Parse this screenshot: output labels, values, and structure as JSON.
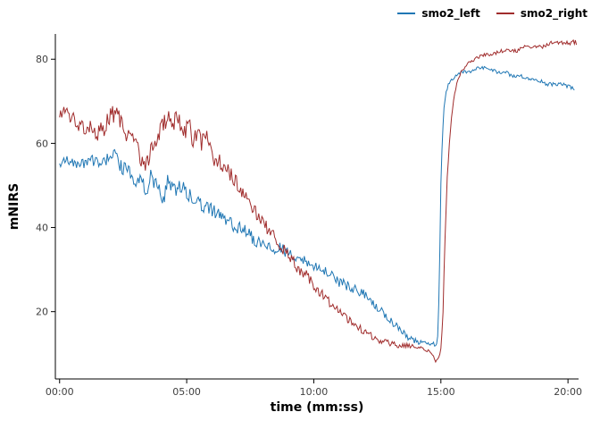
{
  "legend": {
    "items": [
      {
        "label": "smo2_left"
      },
      {
        "label": "smo2_right"
      }
    ]
  },
  "chart_data": {
    "type": "line",
    "title": "",
    "xlabel": "time (mm:ss)",
    "ylabel": "mNIRS",
    "grid": false,
    "legend_position": "top-right",
    "background": "#ffffff",
    "axis_color": "#000000",
    "tick_label_color": "#404040",
    "x_domain": [
      -10,
      1225
    ],
    "y_domain": [
      4,
      86
    ],
    "x_ticks": [
      {
        "t": 0,
        "label": "00:00"
      },
      {
        "t": 300,
        "label": "05:00"
      },
      {
        "t": 600,
        "label": "10:00"
      },
      {
        "t": 900,
        "label": "15:00"
      },
      {
        "t": 1200,
        "label": "20:00"
      }
    ],
    "y_ticks": [
      {
        "v": 20,
        "label": "20"
      },
      {
        "v": 40,
        "label": "40"
      },
      {
        "v": 60,
        "label": "60"
      },
      {
        "v": 80,
        "label": "80"
      }
    ],
    "sample_step": 2.5,
    "series": [
      {
        "name": "smo2_left",
        "color": "#2077b4",
        "points": [
          [
            0,
            55
          ],
          [
            20,
            56
          ],
          [
            40,
            55
          ],
          [
            60,
            55
          ],
          [
            80,
            56
          ],
          [
            100,
            55
          ],
          [
            115,
            57
          ],
          [
            125,
            58
          ],
          [
            140,
            55
          ],
          [
            155,
            54
          ],
          [
            170,
            52
          ],
          [
            180,
            50
          ],
          [
            195,
            52
          ],
          [
            205,
            48
          ],
          [
            215,
            52
          ],
          [
            230,
            50
          ],
          [
            245,
            46
          ],
          [
            255,
            51
          ],
          [
            270,
            49
          ],
          [
            285,
            50
          ],
          [
            300,
            48
          ],
          [
            315,
            47
          ],
          [
            330,
            46
          ],
          [
            345,
            45
          ],
          [
            360,
            44
          ],
          [
            380,
            43
          ],
          [
            400,
            41
          ],
          [
            420,
            40
          ],
          [
            440,
            39
          ],
          [
            460,
            37
          ],
          [
            480,
            36
          ],
          [
            500,
            35
          ],
          [
            520,
            35
          ],
          [
            540,
            34
          ],
          [
            560,
            33
          ],
          [
            580,
            32
          ],
          [
            600,
            31
          ],
          [
            620,
            30
          ],
          [
            640,
            29
          ],
          [
            660,
            27
          ],
          [
            680,
            26
          ],
          [
            700,
            25
          ],
          [
            720,
            24
          ],
          [
            740,
            22
          ],
          [
            760,
            20
          ],
          [
            780,
            18
          ],
          [
            800,
            16
          ],
          [
            820,
            14
          ],
          [
            840,
            13
          ],
          [
            860,
            12.5
          ],
          [
            880,
            12.5
          ],
          [
            888,
            12
          ],
          [
            892,
            13
          ],
          [
            896,
            25
          ],
          [
            900,
            50
          ],
          [
            904,
            63
          ],
          [
            908,
            69
          ],
          [
            912,
            72
          ],
          [
            918,
            74
          ],
          [
            925,
            75
          ],
          [
            935,
            76
          ],
          [
            950,
            77
          ],
          [
            970,
            77
          ],
          [
            990,
            78
          ],
          [
            1010,
            78
          ],
          [
            1030,
            77
          ],
          [
            1050,
            77
          ],
          [
            1070,
            76
          ],
          [
            1090,
            76
          ],
          [
            1110,
            75
          ],
          [
            1130,
            75
          ],
          [
            1150,
            74
          ],
          [
            1170,
            74
          ],
          [
            1190,
            74
          ],
          [
            1215,
            73
          ]
        ],
        "noise": [
          [
            0,
            1.0
          ],
          [
            150,
            1.8
          ],
          [
            330,
            1.8
          ],
          [
            480,
            1.4
          ],
          [
            700,
            1.2
          ],
          [
            860,
            0.6
          ],
          [
            895,
            0.4
          ],
          [
            930,
            0.4
          ],
          [
            1230,
            0.5
          ]
        ]
      },
      {
        "name": "smo2_right",
        "color": "#a02c2c",
        "points": [
          [
            0,
            67
          ],
          [
            15,
            68
          ],
          [
            30,
            66
          ],
          [
            45,
            64
          ],
          [
            60,
            63
          ],
          [
            75,
            65
          ],
          [
            90,
            62
          ],
          [
            105,
            64
          ],
          [
            120,
            66
          ],
          [
            135,
            68
          ],
          [
            150,
            64
          ],
          [
            165,
            61
          ],
          [
            180,
            59
          ],
          [
            195,
            56
          ],
          [
            205,
            55
          ],
          [
            215,
            58
          ],
          [
            225,
            61
          ],
          [
            240,
            64
          ],
          [
            255,
            66
          ],
          [
            265,
            63
          ],
          [
            275,
            66
          ],
          [
            285,
            64
          ],
          [
            295,
            62
          ],
          [
            305,
            64
          ],
          [
            315,
            61
          ],
          [
            325,
            63
          ],
          [
            335,
            60
          ],
          [
            345,
            62
          ],
          [
            355,
            58
          ],
          [
            370,
            56
          ],
          [
            385,
            55
          ],
          [
            400,
            53
          ],
          [
            415,
            51
          ],
          [
            430,
            49
          ],
          [
            445,
            46
          ],
          [
            460,
            44
          ],
          [
            475,
            42
          ],
          [
            490,
            40
          ],
          [
            505,
            38
          ],
          [
            520,
            36
          ],
          [
            535,
            34
          ],
          [
            550,
            32
          ],
          [
            565,
            30
          ],
          [
            580,
            29
          ],
          [
            600,
            26
          ],
          [
            620,
            24
          ],
          [
            640,
            22
          ],
          [
            660,
            20
          ],
          [
            680,
            18
          ],
          [
            700,
            17
          ],
          [
            720,
            15
          ],
          [
            740,
            14
          ],
          [
            760,
            13
          ],
          [
            780,
            12.5
          ],
          [
            800,
            12
          ],
          [
            820,
            12
          ],
          [
            840,
            11.5
          ],
          [
            860,
            11
          ],
          [
            875,
            10.5
          ],
          [
            883,
            9
          ],
          [
            889,
            8
          ],
          [
            895,
            9
          ],
          [
            900,
            11
          ],
          [
            905,
            20
          ],
          [
            910,
            38
          ],
          [
            915,
            52
          ],
          [
            920,
            60
          ],
          [
            925,
            66
          ],
          [
            930,
            70
          ],
          [
            935,
            73
          ],
          [
            940,
            75
          ],
          [
            948,
            77
          ],
          [
            956,
            78
          ],
          [
            965,
            79
          ],
          [
            980,
            80
          ],
          [
            1000,
            81
          ],
          [
            1020,
            81
          ],
          [
            1040,
            82
          ],
          [
            1060,
            82
          ],
          [
            1080,
            82
          ],
          [
            1100,
            83
          ],
          [
            1120,
            83
          ],
          [
            1140,
            83
          ],
          [
            1160,
            84
          ],
          [
            1180,
            84
          ],
          [
            1200,
            84
          ],
          [
            1220,
            84
          ]
        ],
        "noise": [
          [
            0,
            1.6
          ],
          [
            120,
            2.4
          ],
          [
            300,
            2.4
          ],
          [
            420,
            1.8
          ],
          [
            600,
            1.2
          ],
          [
            760,
            0.8
          ],
          [
            880,
            0.4
          ],
          [
            930,
            0.3
          ],
          [
            1230,
            0.6
          ]
        ]
      }
    ]
  }
}
